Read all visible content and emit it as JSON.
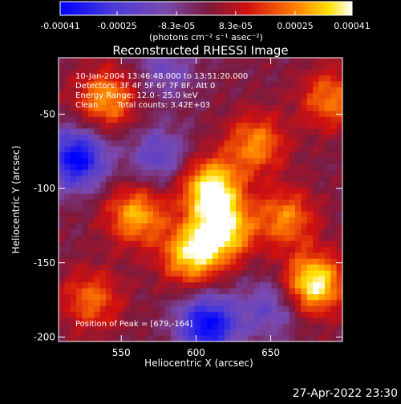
{
  "chart_data": {
    "type": "heatmap",
    "title": "Reconstructed RHESSI Image",
    "xlabel": "Heliocentric X (arcsec)",
    "ylabel": "Heliocentric Y (arcsec)",
    "xlim": [
      508,
      698
    ],
    "ylim": [
      -203,
      -12
    ],
    "x_ticks": [
      550,
      600,
      650
    ],
    "y_ticks": [
      -50,
      -100,
      -150,
      -200
    ],
    "x_tick_labels": [
      "550",
      "600",
      "650"
    ],
    "y_tick_labels": [
      "-50",
      "-100",
      "-150",
      "-200"
    ],
    "colorbar": {
      "min": -0.00041,
      "max": 0.00041,
      "tick_labels": [
        "-0.00041",
        "-0.00025",
        "-8.3e-05",
        "8.3e-05",
        "0.00025",
        "0.00041"
      ],
      "tick_values": [
        -0.00041,
        -0.00025,
        -8.3e-05,
        8.3e-05,
        0.00025,
        0.00041
      ],
      "unit_label": "(photons cm⁻² s⁻¹ asec⁻²)",
      "colormap": [
        "#0000ff",
        "#6a4cc8",
        "#7a2a6a",
        "#c0102a",
        "#ff5a00",
        "#ffd000",
        "#ffffff"
      ]
    },
    "annotations": [
      "10-Jan-2004 13:46:48.000 to 13:51:20.000",
      "Detectors: 3F 4F 5F 6F 7F 8F, Att 0",
      "Energy Range: 12.0 - 25.0 keV",
      "Clean",
      "Total counts: 3.42E+03"
    ],
    "peak_label": "Position of Peak = [679,-164]",
    "peak": {
      "x": 679,
      "y": -164
    },
    "bright_features": [
      {
        "x": 610,
        "y": -100,
        "value": 0.00041
      },
      {
        "x": 618,
        "y": -128,
        "value": 0.00038
      },
      {
        "x": 597,
        "y": -145,
        "value": 0.00035
      },
      {
        "x": 679,
        "y": -164,
        "value": 0.00041
      },
      {
        "x": 560,
        "y": -118,
        "value": 0.0003
      },
      {
        "x": 540,
        "y": -40,
        "value": 0.00028
      },
      {
        "x": 640,
        "y": -70,
        "value": 0.00026
      },
      {
        "x": 660,
        "y": -120,
        "value": 0.00025
      },
      {
        "x": 530,
        "y": -175,
        "value": 0.00022
      },
      {
        "x": 690,
        "y": -40,
        "value": 0.00024
      }
    ],
    "dark_features": [
      {
        "x": 520,
        "y": -80,
        "value": -0.00041
      },
      {
        "x": 608,
        "y": -192,
        "value": -0.00041
      },
      {
        "x": 575,
        "y": -78,
        "value": -0.0002
      },
      {
        "x": 650,
        "y": -180,
        "value": -0.00018
      },
      {
        "x": 580,
        "y": -20,
        "value": -0.00015
      }
    ]
  },
  "footer": {
    "timestamp": "27-Apr-2022 23:30"
  }
}
